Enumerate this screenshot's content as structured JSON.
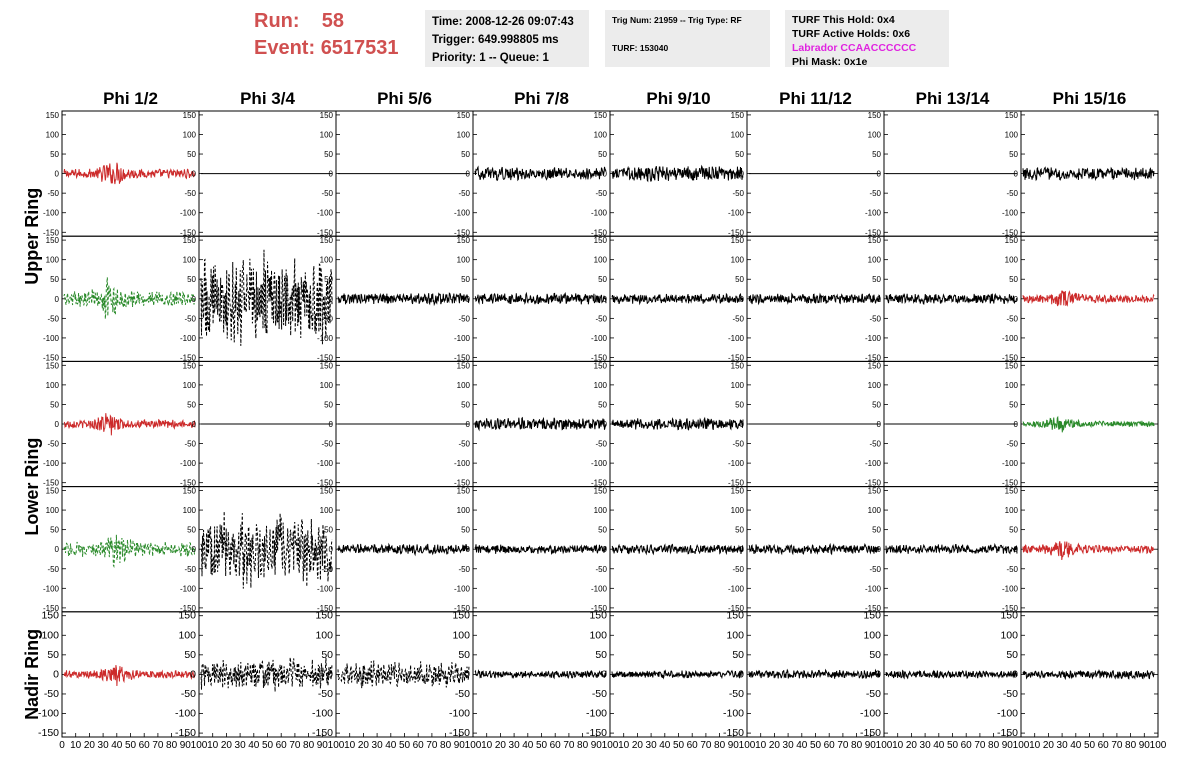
{
  "header": {
    "run_label": "Run:",
    "run_value": "58",
    "event_label": "Event:",
    "event_value": "6517531",
    "time": "Time: 2008-12-26 09:07:43",
    "trigger": "Trigger: 649.998805 ms",
    "priority": "Priority: 1 -- Queue: 1",
    "trig_num": "Trig Num: 21959 -- Trig Type: RF",
    "turf": "TURF: 153040",
    "turf_this_hold": "TURF This Hold: 0x4",
    "turf_active_holds": "TURF Active Holds: 0x6",
    "labrador": "Labrador CCAACCCCCC",
    "phi_mask": "Phi Mask: 0x1e"
  },
  "colors": {
    "run_text": "#d05050",
    "labrador_text": "#e024e0",
    "trace_red": "#cc2a2a",
    "trace_green": "#2a8a2a",
    "trace_black": "#000000",
    "info_box_bg": "#ececec"
  },
  "chart_data": {
    "type": "line",
    "columns": [
      "Phi 1/2",
      "Phi 3/4",
      "Phi 5/6",
      "Phi 7/8",
      "Phi 9/10",
      "Phi 11/12",
      "Phi 13/14",
      "Phi 15/16"
    ],
    "row_groups": [
      "Upper Ring",
      "Lower Ring",
      "Nadir Ring"
    ],
    "ylim": [
      -160,
      160
    ],
    "xlim": [
      0,
      100
    ],
    "y_ticks": [
      "150",
      "100",
      "50",
      "0",
      "-50",
      "-100",
      "-150"
    ],
    "x_ticks": [
      "0",
      "10",
      "20",
      "30",
      "40",
      "50",
      "60",
      "70",
      "80",
      "90",
      "100"
    ],
    "panels": [
      [
        {
          "color": "red",
          "amp": 18,
          "burst": 38,
          "dash": false
        },
        {
          "color": "black",
          "amp": 0,
          "burst": 0,
          "dash": false
        },
        {
          "color": "black",
          "amp": 0,
          "burst": 0,
          "dash": false
        },
        {
          "color": "black",
          "amp": 14,
          "burst": 0,
          "dash": false
        },
        {
          "color": "black",
          "amp": 16,
          "burst": 0,
          "dash": false
        },
        {
          "color": "black",
          "amp": 0,
          "burst": 0,
          "dash": false
        },
        {
          "color": "black",
          "amp": 0,
          "burst": 0,
          "dash": false
        },
        {
          "color": "black",
          "amp": 14,
          "burst": 0,
          "dash": false
        }
      ],
      [
        {
          "color": "green",
          "amp": 22,
          "burst": 34,
          "dash": true
        },
        {
          "color": "black",
          "amp": 70,
          "burst": 0,
          "dash": true
        },
        {
          "color": "black",
          "amp": 12,
          "burst": 0,
          "dash": false
        },
        {
          "color": "black",
          "amp": 12,
          "burst": 0,
          "dash": false
        },
        {
          "color": "black",
          "amp": 11,
          "burst": 0,
          "dash": false
        },
        {
          "color": "black",
          "amp": 11,
          "burst": 0,
          "dash": false
        },
        {
          "color": "black",
          "amp": 11,
          "burst": 0,
          "dash": false
        },
        {
          "color": "red",
          "amp": 16,
          "burst": 30,
          "dash": false
        }
      ],
      [
        {
          "color": "red",
          "amp": 16,
          "burst": 34,
          "dash": false
        },
        {
          "color": "black",
          "amp": 0,
          "burst": 0,
          "dash": false
        },
        {
          "color": "black",
          "amp": 0,
          "burst": 0,
          "dash": false
        },
        {
          "color": "black",
          "amp": 13,
          "burst": 0,
          "dash": false
        },
        {
          "color": "black",
          "amp": 12,
          "burst": 0,
          "dash": false
        },
        {
          "color": "black",
          "amp": 0,
          "burst": 0,
          "dash": false
        },
        {
          "color": "black",
          "amp": 0,
          "burst": 0,
          "dash": false
        },
        {
          "color": "green",
          "amp": 12,
          "burst": 28,
          "dash": false
        }
      ],
      [
        {
          "color": "green",
          "amp": 20,
          "burst": 40,
          "dash": true
        },
        {
          "color": "black",
          "amp": 55,
          "burst": 0,
          "dash": true
        },
        {
          "color": "black",
          "amp": 11,
          "burst": 0,
          "dash": false
        },
        {
          "color": "black",
          "amp": 10,
          "burst": 0,
          "dash": false
        },
        {
          "color": "black",
          "amp": 10,
          "burst": 0,
          "dash": false
        },
        {
          "color": "black",
          "amp": 10,
          "burst": 0,
          "dash": false
        },
        {
          "color": "black",
          "amp": 10,
          "burst": 0,
          "dash": false
        },
        {
          "color": "red",
          "amp": 16,
          "burst": 30,
          "dash": false
        }
      ],
      [
        {
          "color": "red",
          "amp": 16,
          "burst": 40,
          "dash": false
        },
        {
          "color": "black",
          "amp": 24,
          "burst": 0,
          "dash": true
        },
        {
          "color": "black",
          "amp": 20,
          "burst": 0,
          "dash": true
        },
        {
          "color": "black",
          "amp": 8,
          "burst": 0,
          "dash": false
        },
        {
          "color": "black",
          "amp": 8,
          "burst": 0,
          "dash": false
        },
        {
          "color": "black",
          "amp": 9,
          "burst": 0,
          "dash": false
        },
        {
          "color": "black",
          "amp": 8,
          "burst": 0,
          "dash": false
        },
        {
          "color": "black",
          "amp": 9,
          "burst": 0,
          "dash": false
        }
      ]
    ]
  }
}
